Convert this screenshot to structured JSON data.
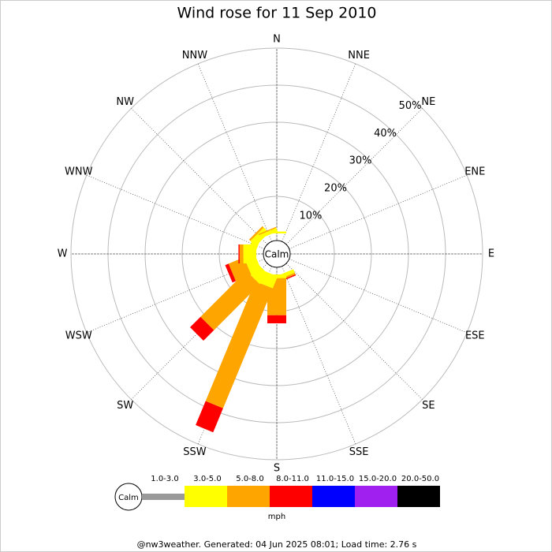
{
  "chart_data": {
    "type": "windrose",
    "title": "Wind rose for 11 Sep 2010",
    "categories": [
      "N",
      "NNE",
      "NE",
      "ENE",
      "E",
      "ESE",
      "SE",
      "SSE",
      "S",
      "SSW",
      "SW",
      "WSW",
      "W",
      "WNW",
      "NW",
      "NNW"
    ],
    "calm_label": "Calm",
    "rlim": [
      0,
      50
    ],
    "rticks": [
      {
        "value": 10,
        "label": "10%"
      },
      {
        "value": 20,
        "label": "20%"
      },
      {
        "value": 30,
        "label": "30%"
      },
      {
        "value": 40,
        "label": "40%"
      },
      {
        "value": 50,
        "label": "50%"
      }
    ],
    "series": [
      {
        "name": "1.0-3.0",
        "color": "#999999",
        "values": [
          0,
          0,
          0,
          0,
          0,
          0,
          0,
          0,
          0,
          0,
          0,
          0,
          0,
          0,
          0,
          0
        ]
      },
      {
        "name": "3.0-5.0",
        "color": "#ffff00",
        "values": [
          0.5,
          0,
          0,
          0,
          0,
          0,
          0,
          1,
          1,
          3.5,
          3.5,
          3,
          3.5,
          2,
          2,
          1
        ]
      },
      {
        "name": "5.0-8.0",
        "color": "#ffa500",
        "values": [
          0,
          0,
          0,
          0,
          0,
          0,
          0,
          0.5,
          10,
          35,
          17.5,
          4.5,
          1,
          0,
          0.5,
          0.3
        ]
      },
      {
        "name": "8.0-11.0",
        "color": "#ff0000",
        "values": [
          0,
          0,
          0,
          0,
          0,
          0,
          0,
          0.3,
          2.2,
          7,
          4,
          1,
          0.3,
          0,
          0,
          0
        ]
      },
      {
        "name": "11.0-15.0",
        "color": "#0000ff",
        "values": [
          0,
          0,
          0,
          0,
          0,
          0,
          0,
          0,
          0,
          0,
          0,
          0,
          0,
          0,
          0,
          0
        ]
      },
      {
        "name": "15.0-20.0",
        "color": "#a020f0",
        "values": [
          0,
          0,
          0,
          0,
          0,
          0,
          0,
          0,
          0,
          0,
          0,
          0,
          0,
          0,
          0,
          0
        ]
      },
      {
        "name": "20.0-50.0",
        "color": "#000000",
        "values": [
          0,
          0,
          0,
          0,
          0,
          0,
          0,
          0,
          0,
          0,
          0,
          0,
          0,
          0,
          0,
          0
        ]
      }
    ],
    "unit": "mph",
    "footer": "@nw3weather. Generated: 04 Jun 2025 08:01; Load time: 2.76 s"
  }
}
